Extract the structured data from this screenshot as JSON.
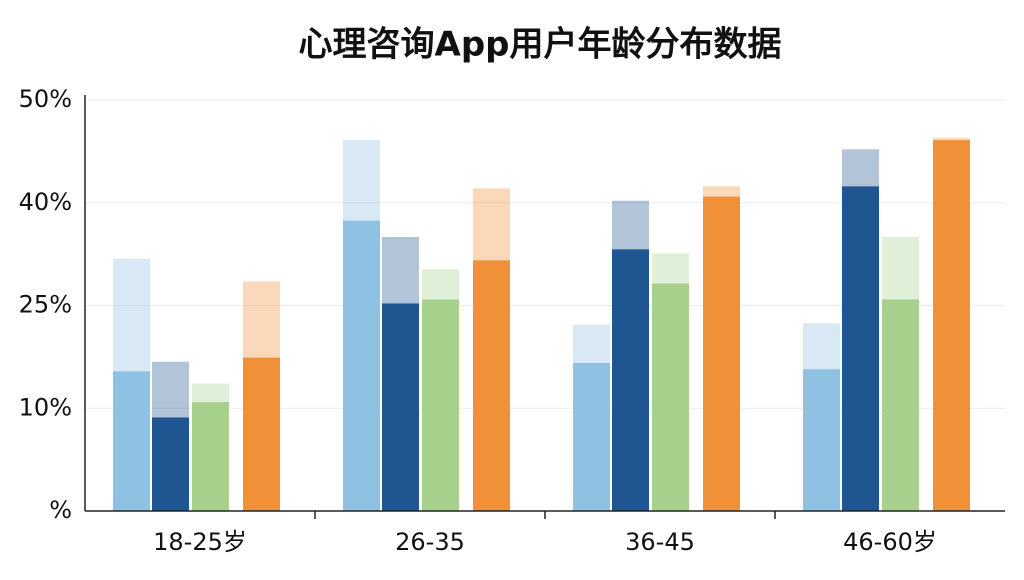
{
  "chart_data": {
    "type": "bar",
    "title": "心理咨询App用户年龄分布数据",
    "categories": [
      "18-25岁",
      "26-35",
      "36-45",
      "46-60岁"
    ],
    "series": [
      {
        "color": "#8fc1e3",
        "values": [
          15.4,
          37.4,
          16.6,
          15.7
        ],
        "faded_values": [
          31.8,
          46.1,
          22.2,
          22.4
        ]
      },
      {
        "color": "#1f5590",
        "values": [
          9.1,
          25.3,
          33.2,
          41.6
        ],
        "faded_values": [
          16.8,
          35,
          40.2,
          45.2
        ]
      },
      {
        "color": "#a6d08b",
        "values": [
          10.9,
          25.9,
          28.2,
          25.9
        ],
        "faded_values": [
          13.6,
          30.3,
          32.6,
          35
        ]
      },
      {
        "color": "#f0913a",
        "values": [
          17.4,
          31.6,
          40.6,
          46.1
        ],
        "faded_values": [
          28.5,
          41.4,
          41.6,
          46.3
        ]
      }
    ],
    "ylim": [
      0,
      50
    ],
    "yticks": [
      {
        "value": 0,
        "label": "%"
      },
      {
        "value": 10,
        "label": "10%"
      },
      {
        "value": 25,
        "label": "25%"
      },
      {
        "value": 40,
        "label": "40%"
      },
      {
        "value": 50,
        "label": "50%"
      }
    ],
    "grid": true
  }
}
